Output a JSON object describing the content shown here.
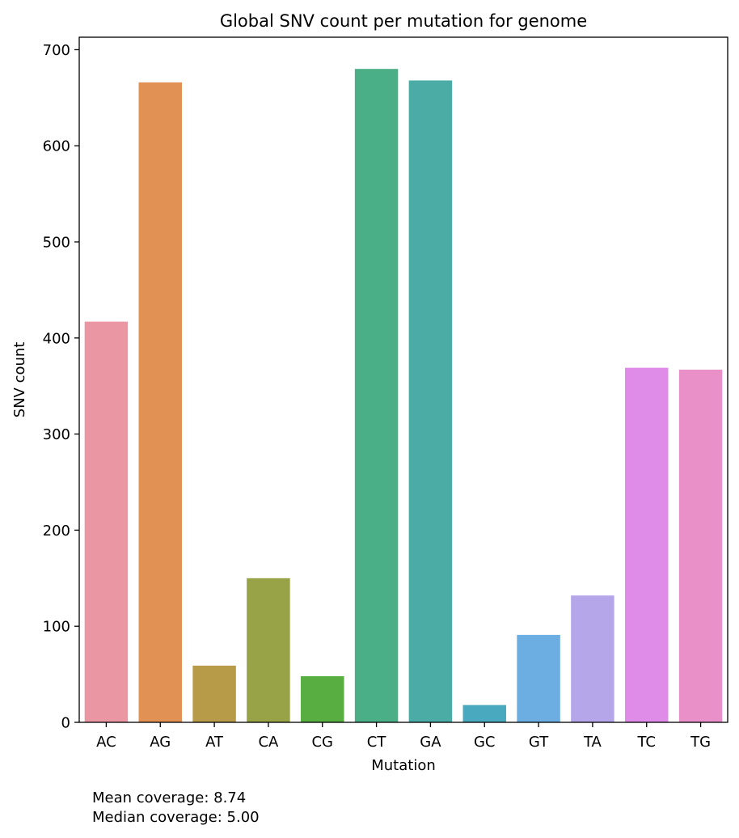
{
  "chart_data": {
    "type": "bar",
    "title": "Global SNV count per mutation for genome",
    "xlabel": "Mutation",
    "ylabel": "SNV count",
    "categories": [
      "AC",
      "AG",
      "AT",
      "CA",
      "CG",
      "CT",
      "GA",
      "GC",
      "GT",
      "TA",
      "TC",
      "TG"
    ],
    "values": [
      417,
      666,
      59,
      150,
      48,
      680,
      668,
      18,
      91,
      132,
      369,
      367
    ],
    "colors": [
      "#ea96a3",
      "#e19153",
      "#b89b49",
      "#98a246",
      "#59ae42",
      "#4aaf86",
      "#4aaca4",
      "#49a9be",
      "#6daee2",
      "#b5a6ea",
      "#de8ce7",
      "#e890c7"
    ],
    "ylim": [
      0,
      713
    ],
    "yticks": [
      0,
      100,
      200,
      300,
      400,
      500,
      600,
      700
    ],
    "grid": false,
    "legend": "none"
  },
  "notes": {
    "mean_coverage": "Mean coverage: 8.74",
    "median_coverage": "Median coverage: 5.00"
  }
}
